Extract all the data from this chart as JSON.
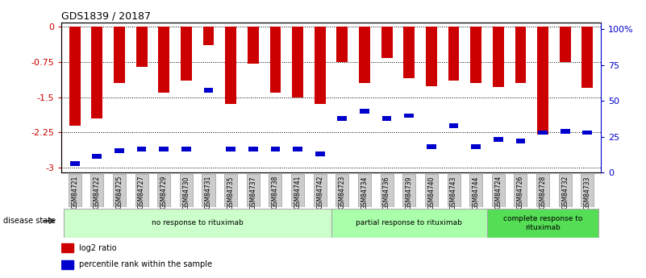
{
  "title": "GDS1839 / 20187",
  "samples": [
    "GSM84721",
    "GSM84722",
    "GSM84725",
    "GSM84727",
    "GSM84729",
    "GSM84730",
    "GSM84731",
    "GSM84735",
    "GSM84737",
    "GSM84738",
    "GSM84741",
    "GSM84742",
    "GSM84723",
    "GSM84734",
    "GSM84736",
    "GSM84739",
    "GSM84740",
    "GSM84743",
    "GSM84744",
    "GSM84724",
    "GSM84726",
    "GSM84728",
    "GSM84732",
    "GSM84733"
  ],
  "log2_values": [
    -2.1,
    -1.95,
    -1.2,
    -0.85,
    -1.4,
    -1.15,
    -0.38,
    -1.65,
    -0.78,
    -1.4,
    -1.5,
    -1.65,
    -0.75,
    -1.2,
    -0.67,
    -1.1,
    -1.27,
    -1.15,
    -1.2,
    -1.28,
    -1.2,
    -2.3,
    -0.75,
    -1.3
  ],
  "percentile_values": [
    3,
    8,
    12,
    13,
    13,
    13,
    55,
    13,
    13,
    13,
    13,
    10,
    35,
    40,
    35,
    37,
    15,
    30,
    15,
    20,
    19,
    25,
    26,
    25
  ],
  "groups": [
    {
      "label": "no response to rituximab",
      "start": 0,
      "end": 12,
      "color": "#ccffcc"
    },
    {
      "label": "partial response to rituximab",
      "start": 12,
      "end": 19,
      "color": "#aaffaa"
    },
    {
      "label": "complete response to\nrituximab",
      "start": 19,
      "end": 24,
      "color": "#55dd55"
    }
  ],
  "ylim_left": [
    -3.1,
    0.1
  ],
  "ylim_right": [
    0,
    105
  ],
  "yticks_left": [
    0,
    -0.75,
    -1.5,
    -2.25,
    -3
  ],
  "ytick_labels_left": [
    "0",
    "-0.75",
    "-1.5",
    "-2.25",
    "-3"
  ],
  "ytick_labels_right": [
    "100%",
    "75",
    "50",
    "25",
    "0"
  ],
  "yticks_right": [
    100,
    75,
    50,
    25,
    0
  ],
  "bar_color_red": "#cc0000",
  "bar_color_blue": "#0000cc",
  "bar_width": 0.5,
  "left_axis_color": "#cc0000",
  "right_axis_color": "#0000cc",
  "disease_state_label": "disease state",
  "legend_items": [
    {
      "label": "log2 ratio",
      "color": "#cc0000"
    },
    {
      "label": "percentile rank within the sample",
      "color": "#0000cc"
    }
  ]
}
